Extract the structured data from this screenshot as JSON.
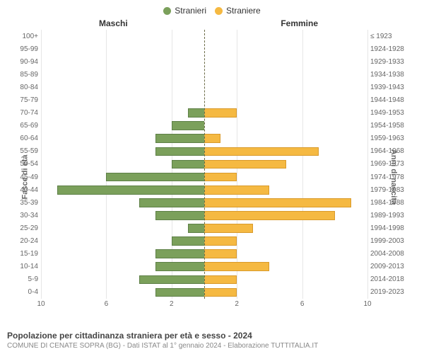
{
  "chart": {
    "type": "population-pyramid",
    "legend": {
      "male": {
        "label": "Stranieri",
        "color": "#7ba05b"
      },
      "female": {
        "label": "Straniere",
        "color": "#f5b942"
      }
    },
    "header_male": "Maschi",
    "header_female": "Femmine",
    "y_left_title": "Fasce di età",
    "y_right_title": "Anni di nascita",
    "x_max": 10,
    "x_ticks": [
      10,
      6,
      2,
      2,
      6,
      10
    ],
    "x_tick_positions": [
      0,
      20,
      40,
      60,
      80,
      100
    ],
    "grid_color": "#e6e6e6",
    "center_line_color": "#6b6b47",
    "male_bar_color": "#7ba05b",
    "male_bar_border": "#5e8047",
    "female_bar_color": "#f5b942",
    "female_bar_border": "#d99a2b",
    "background_color": "#ffffff",
    "label_fontsize": 10,
    "rows": [
      {
        "age": "100+",
        "year": "≤ 1923",
        "m": 0,
        "f": 0
      },
      {
        "age": "95-99",
        "year": "1924-1928",
        "m": 0,
        "f": 0
      },
      {
        "age": "90-94",
        "year": "1929-1933",
        "m": 0,
        "f": 0
      },
      {
        "age": "85-89",
        "year": "1934-1938",
        "m": 0,
        "f": 0
      },
      {
        "age": "80-84",
        "year": "1939-1943",
        "m": 0,
        "f": 0
      },
      {
        "age": "75-79",
        "year": "1944-1948",
        "m": 0,
        "f": 0
      },
      {
        "age": "70-74",
        "year": "1949-1953",
        "m": 1,
        "f": 2
      },
      {
        "age": "65-69",
        "year": "1954-1958",
        "m": 2,
        "f": 0
      },
      {
        "age": "60-64",
        "year": "1959-1963",
        "m": 3,
        "f": 1
      },
      {
        "age": "55-59",
        "year": "1964-1968",
        "m": 3,
        "f": 7
      },
      {
        "age": "50-54",
        "year": "1969-1973",
        "m": 2,
        "f": 5
      },
      {
        "age": "45-49",
        "year": "1974-1978",
        "m": 6,
        "f": 2
      },
      {
        "age": "40-44",
        "year": "1979-1983",
        "m": 9,
        "f": 4
      },
      {
        "age": "35-39",
        "year": "1984-1988",
        "m": 4,
        "f": 9
      },
      {
        "age": "30-34",
        "year": "1989-1993",
        "m": 3,
        "f": 8
      },
      {
        "age": "25-29",
        "year": "1994-1998",
        "m": 1,
        "f": 3
      },
      {
        "age": "20-24",
        "year": "1999-2003",
        "m": 2,
        "f": 2
      },
      {
        "age": "15-19",
        "year": "2004-2008",
        "m": 3,
        "f": 2
      },
      {
        "age": "10-14",
        "year": "2009-2013",
        "m": 3,
        "f": 4
      },
      {
        "age": "5-9",
        "year": "2014-2018",
        "m": 4,
        "f": 2
      },
      {
        "age": "0-4",
        "year": "2019-2023",
        "m": 3,
        "f": 2
      }
    ]
  },
  "title": "Popolazione per cittadinanza straniera per età e sesso - 2024",
  "subtitle": "COMUNE DI CENATE SOPRA (BG) - Dati ISTAT al 1° gennaio 2024 - Elaborazione TUTTITALIA.IT"
}
